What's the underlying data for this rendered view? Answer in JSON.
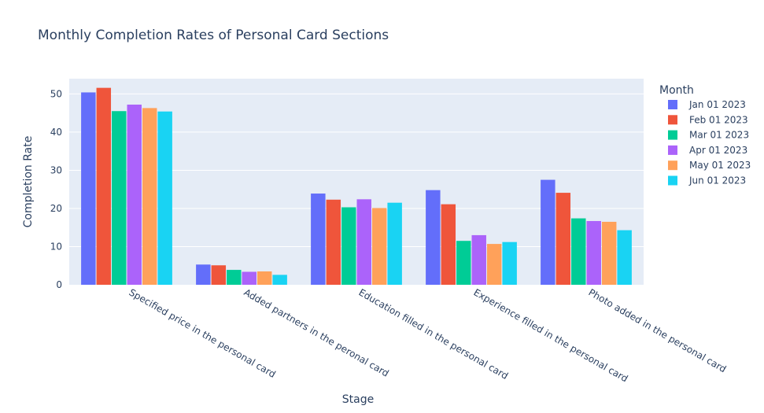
{
  "chart_data": {
    "type": "bar",
    "title": "Monthly Completion Rates of Personal Card Sections",
    "xlabel": "Stage",
    "ylabel": "Completion Rate",
    "ylim": [
      0,
      54
    ],
    "yticks": [
      0,
      10,
      20,
      30,
      40,
      50
    ],
    "grid": true,
    "legend_title": "Month",
    "legend_placement": "top-right",
    "categories": [
      "Specified price in the personal card",
      "Added partners in the peronal card",
      "Education filled in the personal card",
      "Experience filled in the personal card",
      "Photo added in the personal card"
    ],
    "series": [
      {
        "name": "Jan 01 2023",
        "color": "#636efa",
        "values": [
          50.4,
          5.3,
          23.9,
          24.8,
          27.5
        ]
      },
      {
        "name": "Feb 01 2023",
        "color": "#ef553b",
        "values": [
          51.6,
          5.1,
          22.3,
          21.1,
          24.1
        ]
      },
      {
        "name": "Mar 01 2023",
        "color": "#00cc96",
        "values": [
          45.5,
          3.9,
          20.3,
          11.5,
          17.4
        ]
      },
      {
        "name": "Apr 01 2023",
        "color": "#ab63fa",
        "values": [
          47.2,
          3.4,
          22.4,
          13.0,
          16.7
        ]
      },
      {
        "name": "May 01 2023",
        "color": "#ffa15a",
        "values": [
          46.3,
          3.5,
          20.1,
          10.7,
          16.5
        ]
      },
      {
        "name": "Jun 01 2023",
        "color": "#19d3f3",
        "values": [
          45.4,
          2.6,
          21.5,
          11.2,
          14.3
        ]
      }
    ]
  }
}
